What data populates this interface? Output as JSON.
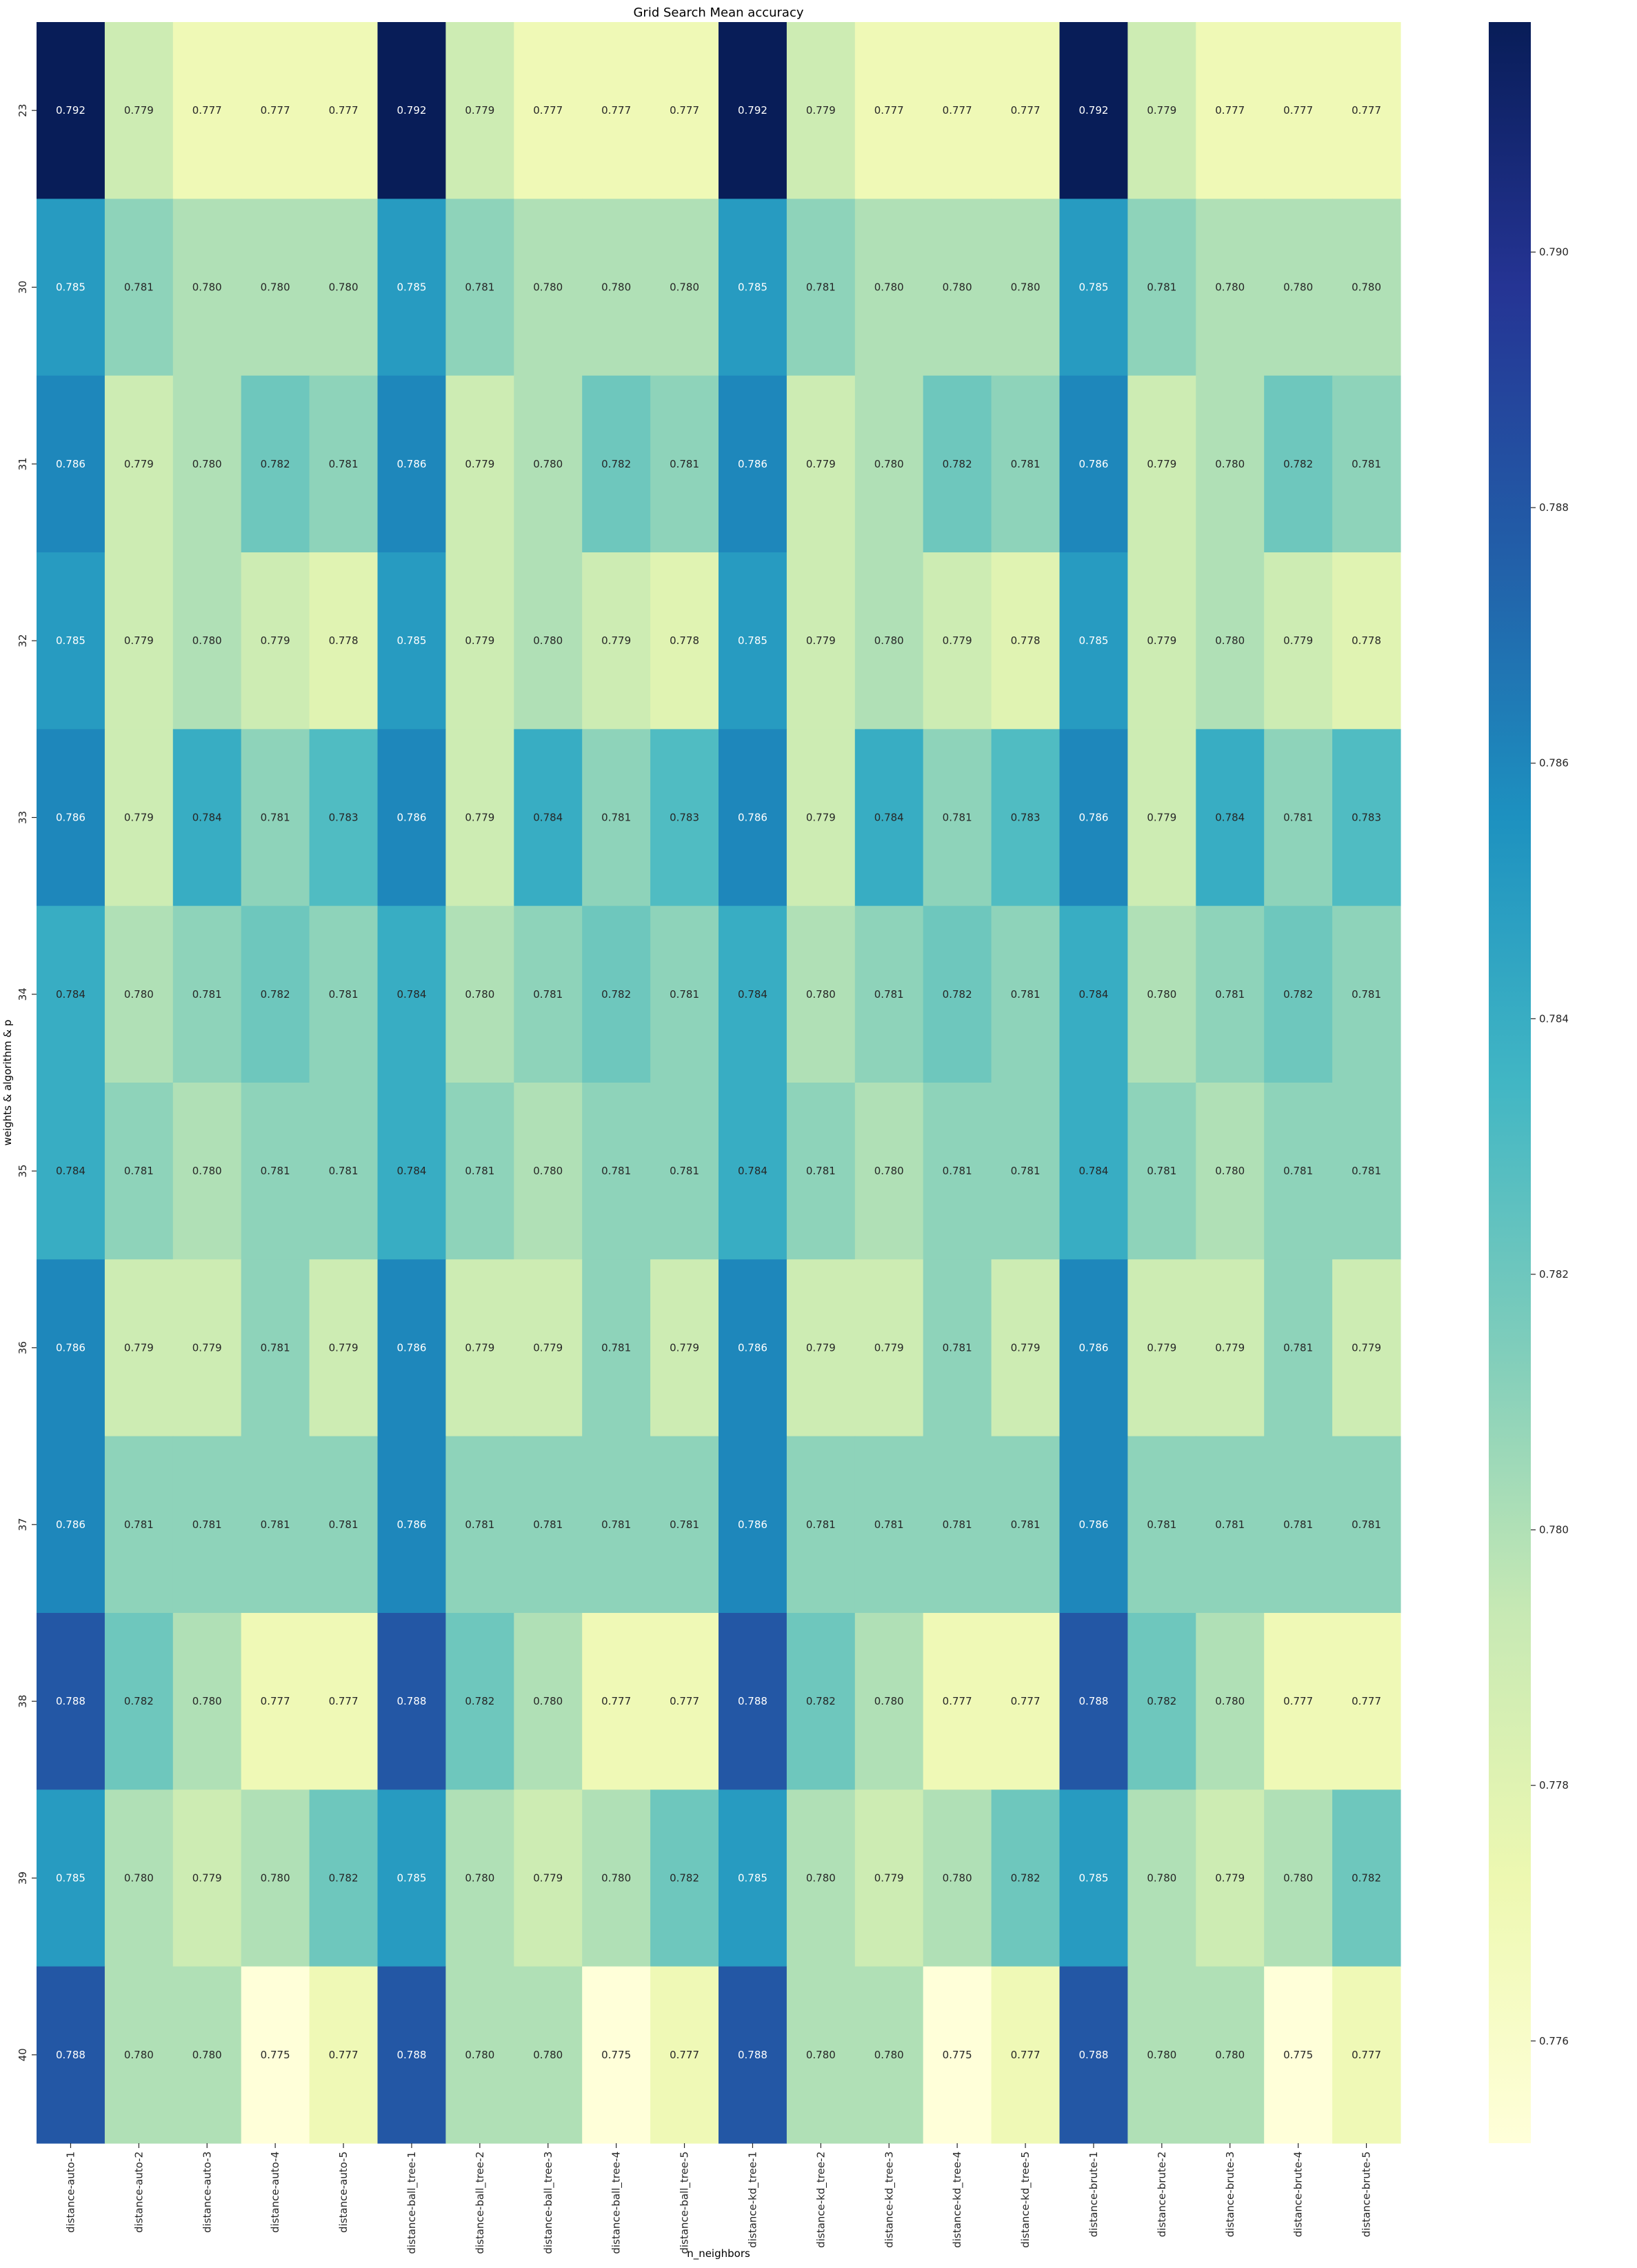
{
  "chart_data": {
    "type": "heatmap",
    "title": "Grid Search Mean accuracy",
    "xlabel": "n_neighbors",
    "ylabel": "weights & algorithm & p",
    "x_categories": [
      "distance-auto-1",
      "distance-auto-2",
      "distance-auto-3",
      "distance-auto-4",
      "distance-auto-5",
      "distance-ball_tree-1",
      "distance-ball_tree-2",
      "distance-ball_tree-3",
      "distance-ball_tree-4",
      "distance-ball_tree-5",
      "distance-kd_tree-1",
      "distance-kd_tree-2",
      "distance-kd_tree-3",
      "distance-kd_tree-4",
      "distance-kd_tree-5",
      "distance-brute-1",
      "distance-brute-2",
      "distance-brute-3",
      "distance-brute-4",
      "distance-brute-5"
    ],
    "y_categories": [
      "23",
      "30",
      "31",
      "32",
      "33",
      "34",
      "35",
      "36",
      "37",
      "38",
      "39",
      "40"
    ],
    "values": [
      [
        0.792,
        0.779,
        0.777,
        0.777,
        0.777,
        0.792,
        0.779,
        0.777,
        0.777,
        0.777,
        0.792,
        0.779,
        0.777,
        0.777,
        0.777,
        0.792,
        0.779,
        0.777,
        0.777,
        0.777
      ],
      [
        0.785,
        0.781,
        0.78,
        0.78,
        0.78,
        0.785,
        0.781,
        0.78,
        0.78,
        0.78,
        0.785,
        0.781,
        0.78,
        0.78,
        0.78,
        0.785,
        0.781,
        0.78,
        0.78,
        0.78
      ],
      [
        0.786,
        0.779,
        0.78,
        0.782,
        0.781,
        0.786,
        0.779,
        0.78,
        0.782,
        0.781,
        0.786,
        0.779,
        0.78,
        0.782,
        0.781,
        0.786,
        0.779,
        0.78,
        0.782,
        0.781
      ],
      [
        0.785,
        0.779,
        0.78,
        0.779,
        0.778,
        0.785,
        0.779,
        0.78,
        0.779,
        0.778,
        0.785,
        0.779,
        0.78,
        0.779,
        0.778,
        0.785,
        0.779,
        0.78,
        0.779,
        0.778
      ],
      [
        0.786,
        0.779,
        0.784,
        0.781,
        0.783,
        0.786,
        0.779,
        0.784,
        0.781,
        0.783,
        0.786,
        0.779,
        0.784,
        0.781,
        0.783,
        0.786,
        0.779,
        0.784,
        0.781,
        0.783
      ],
      [
        0.784,
        0.78,
        0.781,
        0.782,
        0.781,
        0.784,
        0.78,
        0.781,
        0.782,
        0.781,
        0.784,
        0.78,
        0.781,
        0.782,
        0.781,
        0.784,
        0.78,
        0.781,
        0.782,
        0.781
      ],
      [
        0.784,
        0.781,
        0.78,
        0.781,
        0.781,
        0.784,
        0.781,
        0.78,
        0.781,
        0.781,
        0.784,
        0.781,
        0.78,
        0.781,
        0.781,
        0.784,
        0.781,
        0.78,
        0.781,
        0.781
      ],
      [
        0.786,
        0.779,
        0.779,
        0.781,
        0.779,
        0.786,
        0.779,
        0.779,
        0.781,
        0.779,
        0.786,
        0.779,
        0.779,
        0.781,
        0.779,
        0.786,
        0.779,
        0.779,
        0.781,
        0.779
      ],
      [
        0.786,
        0.781,
        0.781,
        0.781,
        0.781,
        0.786,
        0.781,
        0.781,
        0.781,
        0.781,
        0.786,
        0.781,
        0.781,
        0.781,
        0.781,
        0.786,
        0.781,
        0.781,
        0.781,
        0.781
      ],
      [
        0.788,
        0.782,
        0.78,
        0.777,
        0.777,
        0.788,
        0.782,
        0.78,
        0.777,
        0.777,
        0.788,
        0.782,
        0.78,
        0.777,
        0.777,
        0.788,
        0.782,
        0.78,
        0.777,
        0.777
      ],
      [
        0.785,
        0.78,
        0.779,
        0.78,
        0.782,
        0.785,
        0.78,
        0.779,
        0.78,
        0.782,
        0.785,
        0.78,
        0.779,
        0.78,
        0.782,
        0.785,
        0.78,
        0.779,
        0.78,
        0.782
      ],
      [
        0.788,
        0.78,
        0.78,
        0.775,
        0.777,
        0.788,
        0.78,
        0.78,
        0.775,
        0.777,
        0.788,
        0.78,
        0.78,
        0.775,
        0.777,
        0.788,
        0.78,
        0.78,
        0.775,
        0.777
      ]
    ],
    "value_format": "3 decimals",
    "colormap": "YlGnBu",
    "colormap_stops": [
      "#ffffd9",
      "#edf8b1",
      "#c7e9b4",
      "#7fcdbb",
      "#41b6c4",
      "#1d91c0",
      "#225ea8",
      "#253494",
      "#081d58"
    ],
    "colorbar": {
      "range": [
        0.7752,
        0.7918
      ],
      "ticks": [
        "0.776",
        "0.778",
        "0.780",
        "0.782",
        "0.784",
        "0.786",
        "0.788",
        "0.790"
      ]
    },
    "text_color_light": "#ffffff",
    "text_color_dark": "#262626",
    "grid": false,
    "legend": "colorbar-right"
  }
}
